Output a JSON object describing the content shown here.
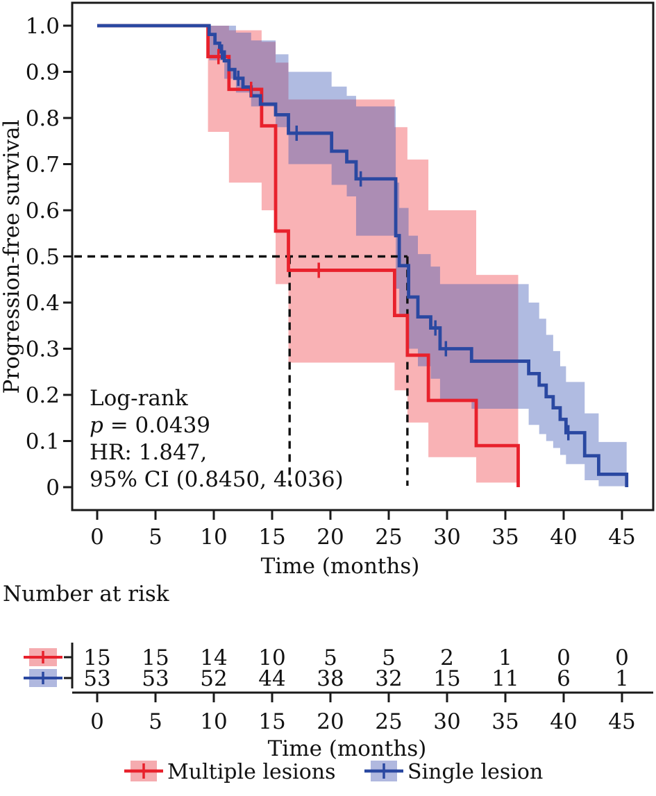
{
  "chart_data": {
    "type": "line",
    "subtype": "kaplan-meier-step-with-ci-bands",
    "title": "",
    "xlabel": "Time (months)",
    "ylabel": "Progression-free survival",
    "xlim": [
      0,
      45
    ],
    "ylim": [
      0,
      1.0
    ],
    "xticks": [
      0,
      5,
      10,
      15,
      20,
      25,
      30,
      35,
      40,
      45
    ],
    "yticks": [
      0,
      0.1,
      0.2,
      0.3,
      0.4,
      0.5,
      0.6,
      0.7,
      0.8,
      0.9,
      1.0
    ],
    "ytick_labels": [
      "0",
      "0.1",
      "0.2",
      "0.3",
      "0.4",
      "0.5",
      "0.6",
      "0.7",
      "0.8",
      "0.9",
      "1.0"
    ],
    "grid": false,
    "legend_position": "bottom",
    "annotation_lines": [
      {
        "italic": "",
        "text": "Log-rank"
      },
      {
        "italic": "p",
        "text": " = 0.0439"
      },
      {
        "italic": "",
        "text": "HR: 1.847,"
      },
      {
        "italic": "",
        "text": "95% CI (0.8450, 4.036)"
      }
    ],
    "median_guides": {
      "survival_level": 0.5,
      "times_months": [
        16.5,
        26.6
      ]
    },
    "series": [
      {
        "name": "Multiple lesions",
        "color": "#e8212c",
        "band_fill": "#ee1c25",
        "band_opacity": 0.34,
        "key_fill": "#f5abaf",
        "steps": [
          [
            0,
            1.0
          ],
          [
            9.5,
            0.933
          ],
          [
            11.3,
            0.862
          ],
          [
            14.1,
            0.783
          ],
          [
            15.3,
            0.555
          ],
          [
            16.4,
            0.47
          ],
          [
            25.5,
            0.372
          ],
          [
            26.6,
            0.286
          ],
          [
            28.4,
            0.188
          ],
          [
            32.5,
            0.09
          ],
          [
            36.1,
            0.0
          ]
        ],
        "censor_marks": [
          [
            10.4,
            0.933
          ],
          [
            13.2,
            0.862
          ],
          [
            19.0,
            0.47
          ]
        ],
        "ci_band": [
          [
            9.5,
            1.0,
            0.77
          ],
          [
            11.3,
            0.99,
            0.66
          ],
          [
            14.1,
            0.965,
            0.6
          ],
          [
            15.3,
            0.92,
            0.44
          ],
          [
            16.4,
            0.84,
            0.27
          ],
          [
            25.5,
            0.78,
            0.21
          ],
          [
            26.6,
            0.71,
            0.14
          ],
          [
            28.4,
            0.6,
            0.065
          ],
          [
            32.5,
            0.46,
            0.01
          ]
        ],
        "band_end": 36.1
      },
      {
        "name": "Single lesion",
        "color": "#2a48a1",
        "band_fill": "#3a55b4",
        "band_opacity": 0.4,
        "key_fill": "#b0b8df",
        "steps": [
          [
            0,
            1.0
          ],
          [
            9.6,
            0.981
          ],
          [
            10.1,
            0.962
          ],
          [
            10.5,
            0.943
          ],
          [
            10.9,
            0.924
          ],
          [
            11.3,
            0.905
          ],
          [
            11.8,
            0.886
          ],
          [
            12.5,
            0.867
          ],
          [
            13.2,
            0.848
          ],
          [
            14.0,
            0.83
          ],
          [
            15.3,
            0.807
          ],
          [
            16.4,
            0.767
          ],
          [
            20.1,
            0.728
          ],
          [
            21.4,
            0.705
          ],
          [
            22.2,
            0.668
          ],
          [
            25.6,
            0.545
          ],
          [
            25.9,
            0.48
          ],
          [
            26.7,
            0.412
          ],
          [
            27.5,
            0.369
          ],
          [
            28.6,
            0.345
          ],
          [
            29.4,
            0.3
          ],
          [
            32.1,
            0.273
          ],
          [
            37.0,
            0.246
          ],
          [
            37.9,
            0.221
          ],
          [
            38.5,
            0.196
          ],
          [
            39.1,
            0.172
          ],
          [
            39.7,
            0.147
          ],
          [
            40.2,
            0.118
          ],
          [
            41.8,
            0.068
          ],
          [
            43.0,
            0.028
          ],
          [
            45.4,
            0.0
          ]
        ],
        "censor_marks": [
          [
            10.7,
            0.943
          ],
          [
            12.1,
            0.886
          ],
          [
            17.1,
            0.767
          ],
          [
            22.6,
            0.668
          ],
          [
            29.0,
            0.345
          ],
          [
            29.9,
            0.3
          ],
          [
            40.4,
            0.118
          ]
        ],
        "ci_band": [
          [
            9.6,
            1.0,
            0.925
          ],
          [
            10.9,
            1.0,
            0.885
          ],
          [
            11.9,
            0.985,
            0.855
          ],
          [
            13.2,
            0.968,
            0.825
          ],
          [
            15.3,
            0.938,
            0.78
          ],
          [
            16.4,
            0.9,
            0.7
          ],
          [
            20.1,
            0.868,
            0.655
          ],
          [
            21.4,
            0.848,
            0.63
          ],
          [
            22.2,
            0.825,
            0.545
          ],
          [
            25.6,
            0.66,
            0.43
          ],
          [
            25.9,
            0.605,
            0.37
          ],
          [
            26.7,
            0.545,
            0.3
          ],
          [
            27.5,
            0.505,
            0.262
          ],
          [
            28.6,
            0.478,
            0.235
          ],
          [
            29.4,
            0.44,
            0.19
          ],
          [
            32.1,
            0.44,
            0.17
          ],
          [
            37.0,
            0.4,
            0.135
          ],
          [
            37.9,
            0.365,
            0.115
          ],
          [
            38.5,
            0.33,
            0.1
          ],
          [
            39.1,
            0.295,
            0.085
          ],
          [
            39.7,
            0.262,
            0.07
          ],
          [
            40.2,
            0.228,
            0.05
          ],
          [
            41.8,
            0.16,
            0.015
          ],
          [
            43.0,
            0.098,
            0.002
          ]
        ],
        "band_end": 45.4
      }
    ],
    "risk_table": {
      "title": "Number at risk",
      "xlabel": "Time (months)",
      "times": [
        0,
        5,
        10,
        15,
        20,
        25,
        30,
        35,
        40,
        45
      ],
      "rows": [
        {
          "name": "Multiple lesions",
          "counts": [
            15,
            15,
            14,
            10,
            5,
            5,
            2,
            1,
            0,
            0
          ]
        },
        {
          "name": "Single lesion",
          "counts": [
            53,
            53,
            52,
            44,
            38,
            32,
            15,
            11,
            6,
            1
          ]
        }
      ]
    },
    "legend": [
      {
        "label": "Multiple lesions"
      },
      {
        "label": "Single lesion"
      }
    ]
  }
}
